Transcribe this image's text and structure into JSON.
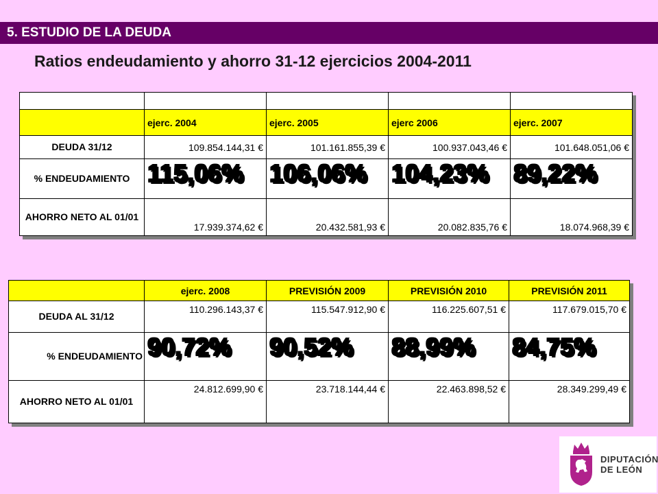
{
  "header": {
    "section_title": "5. ESTUDIO DE LA DEUDA",
    "subtitle": "Ratios endeudamiento y ahorro 31-12 ejercicios 2004-2011"
  },
  "table1": {
    "columns": [
      "ejerc. 2004",
      "ejerc. 2005",
      "ejerc 2006",
      "ejerc. 2007"
    ],
    "rows": [
      {
        "label": "DEUDA 31/12",
        "values": [
          "109.854.144,31 €",
          "101.161.855,39 €",
          "100.937.043,46 €",
          "101.648.051,06 €"
        ]
      },
      {
        "label": "% ENDEUDAMIENTO",
        "values": [
          "115,06%",
          "106,06%",
          "104,23%",
          "89,22%"
        ]
      },
      {
        "label": "AHORRO NETO AL 01/01",
        "values": [
          "17.939.374,62 €",
          "20.432.581,93 €",
          "20.082.835,76 €",
          "18.074.968,39 €"
        ]
      }
    ]
  },
  "table2": {
    "columns": [
      "ejerc. 2008",
      "PREVISIÓN 2009",
      "PREVISIÓN 2010",
      "PREVISIÓN 2011"
    ],
    "rows": [
      {
        "label": "DEUDA AL 31/12",
        "values": [
          "110.296.143,37 €",
          "115.547.912,90 €",
          "116.225.607,51 €",
          "117.679.015,70 €"
        ]
      },
      {
        "label": "% ENDEUDAMIENTO",
        "values": [
          "90,72%",
          "90,52%",
          "88,99%",
          "84,75%"
        ]
      },
      {
        "label": "AHORRO NETO AL 01/01",
        "values": [
          "24.812.699,90 €",
          "23.718.144,44 €",
          "22.463.898,52 €",
          "28.349.299,49 €"
        ]
      }
    ]
  },
  "logo": {
    "line1": "DIPUTACIÓN",
    "line2": "DE LEÓN"
  },
  "colors": {
    "background": "#FFCCFF",
    "section_bar": "#660066",
    "header_cells": "#FFFF00",
    "percent_text": "#99CCFF",
    "logo_accent": "#B0228C"
  }
}
